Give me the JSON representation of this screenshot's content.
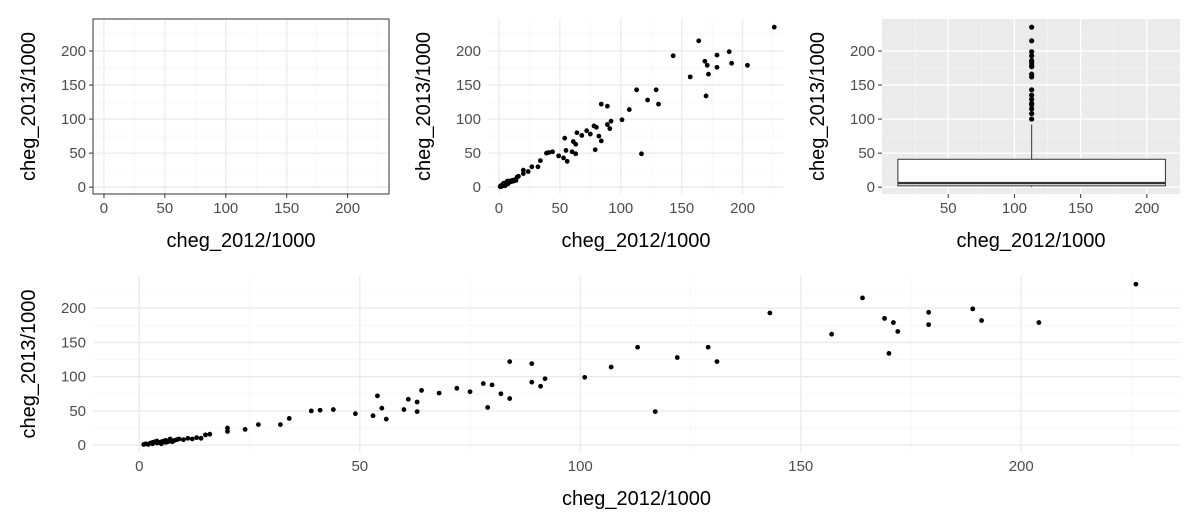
{
  "figure": {
    "panel_count": 4
  },
  "chart_data": [
    {
      "id": "blank",
      "type": "scatter",
      "theme": "bw",
      "xlabel": "cheg_2012/1000",
      "ylabel": "cheg_2013/1000",
      "x_ticks": [
        0,
        50,
        100,
        150,
        200
      ],
      "y_ticks": [
        0,
        50,
        100,
        150,
        200
      ],
      "xlim": [
        -9,
        234
      ],
      "ylim": [
        -10,
        247
      ],
      "grid": true,
      "points": "none"
    },
    {
      "id": "scatter",
      "type": "scatter",
      "theme": "minimal",
      "xlabel": "cheg_2012/1000",
      "ylabel": "cheg_2013/1000",
      "x_ticks": [
        0,
        50,
        100,
        150,
        200
      ],
      "y_ticks": [
        0,
        50,
        100,
        150,
        200
      ],
      "xlim": [
        -9,
        234
      ],
      "ylim": [
        -10,
        247
      ],
      "grid": true,
      "points": "shared"
    },
    {
      "id": "boxplot",
      "type": "box",
      "theme": "grey",
      "xlabel": "cheg_2012/1000",
      "ylabel": "cheg_2013/1000",
      "x_ticks": [
        50,
        100,
        150,
        200
      ],
      "y_ticks": [
        0,
        50,
        100,
        150,
        200
      ],
      "xlim": [
        0,
        225
      ],
      "ylim": [
        -10,
        247
      ],
      "grid": true,
      "box": {
        "x_from": 12,
        "x_to": 214,
        "x_center": 113,
        "q1": 2,
        "median": 6,
        "q3": 41,
        "whisker_low": 0,
        "whisker_high": 92
      },
      "outliers": [
        100,
        108,
        115,
        121,
        123,
        129,
        135,
        143,
        162,
        166,
        177,
        179,
        183,
        186,
        193,
        199,
        215,
        235
      ]
    },
    {
      "id": "scatter-wide",
      "type": "scatter",
      "theme": "minimal",
      "xlabel": "cheg_2012/1000",
      "ylabel": "cheg_2013/1000",
      "x_ticks": [
        0,
        50,
        100,
        150,
        200
      ],
      "y_ticks": [
        0,
        50,
        100,
        150,
        200
      ],
      "xlim": [
        -10.5,
        236
      ],
      "ylim": [
        -10,
        247
      ],
      "grid": true,
      "points": "shared"
    }
  ],
  "points": [
    [
      1,
      1
    ],
    [
      1.5,
      2
    ],
    [
      2,
      1
    ],
    [
      2.5,
      3
    ],
    [
      3,
      2
    ],
    [
      3,
      4
    ],
    [
      3.5,
      5
    ],
    [
      4,
      3
    ],
    [
      4,
      6
    ],
    [
      4.5,
      4
    ],
    [
      5,
      5
    ],
    [
      5,
      2
    ],
    [
      5.5,
      6
    ],
    [
      6,
      4
    ],
    [
      6,
      7
    ],
    [
      6.5,
      5
    ],
    [
      7,
      6
    ],
    [
      7,
      9
    ],
    [
      7.5,
      5
    ],
    [
      8,
      7
    ],
    [
      8.5,
      8
    ],
    [
      9,
      9
    ],
    [
      10,
      8
    ],
    [
      11,
      10
    ],
    [
      12,
      9
    ],
    [
      13,
      11
    ],
    [
      14,
      10
    ],
    [
      15,
      15
    ],
    [
      16,
      16
    ],
    [
      20,
      20
    ],
    [
      20,
      25
    ],
    [
      24,
      23
    ],
    [
      27,
      30
    ],
    [
      32,
      30
    ],
    [
      34,
      39
    ],
    [
      39,
      50
    ],
    [
      41,
      51
    ],
    [
      44,
      52
    ],
    [
      49,
      46
    ],
    [
      53,
      43
    ],
    [
      54,
      72
    ],
    [
      55,
      54
    ],
    [
      56,
      38
    ],
    [
      60,
      52
    ],
    [
      61,
      67
    ],
    [
      63,
      63
    ],
    [
      63,
      49
    ],
    [
      64,
      80
    ],
    [
      68,
      76
    ],
    [
      72,
      83
    ],
    [
      75,
      78
    ],
    [
      78,
      90
    ],
    [
      79,
      55
    ],
    [
      80,
      88
    ],
    [
      82,
      75
    ],
    [
      84,
      68
    ],
    [
      84,
      122
    ],
    [
      89,
      119
    ],
    [
      89,
      92
    ],
    [
      91,
      86
    ],
    [
      92,
      97
    ],
    [
      101,
      99
    ],
    [
      107,
      114
    ],
    [
      113,
      143
    ],
    [
      117,
      49
    ],
    [
      122,
      128
    ],
    [
      129,
      143
    ],
    [
      131,
      122
    ],
    [
      143,
      193
    ],
    [
      157,
      162
    ],
    [
      164,
      215
    ],
    [
      169,
      185
    ],
    [
      170,
      134
    ],
    [
      171,
      179
    ],
    [
      172,
      166
    ],
    [
      179,
      194
    ],
    [
      179,
      176
    ],
    [
      189,
      199
    ],
    [
      191,
      182
    ],
    [
      204,
      179
    ],
    [
      226,
      235
    ]
  ]
}
